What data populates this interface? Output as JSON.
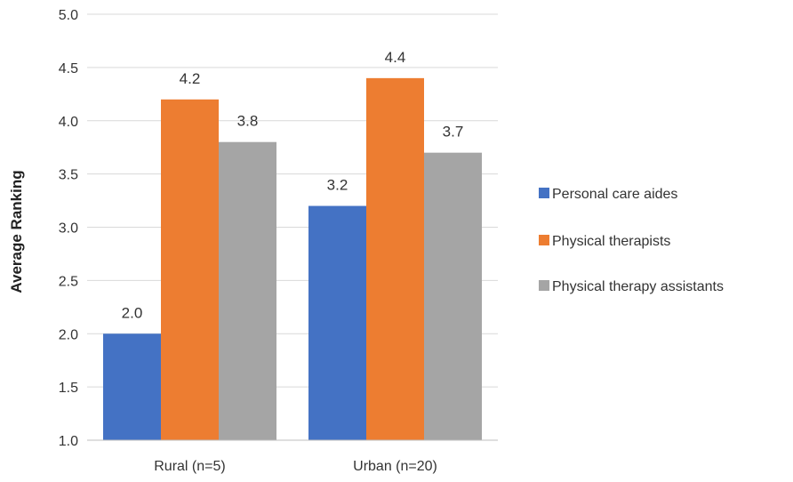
{
  "chart_data": {
    "type": "bar",
    "title": "",
    "xlabel": "",
    "ylabel": "Average Ranking",
    "categories": [
      "Rural (n=5)",
      "Urban (n=20)"
    ],
    "series": [
      {
        "name": "Personal care aides",
        "values": [
          2.0,
          3.2
        ],
        "color": "#4472C4"
      },
      {
        "name": "Physical therapists",
        "values": [
          4.2,
          4.4
        ],
        "color": "#ED7D31"
      },
      {
        "name": "Physical therapy assistants",
        "values": [
          3.8,
          3.7
        ],
        "color": "#A5A5A5"
      }
    ],
    "data_labels": [
      [
        "2.0",
        "3.2"
      ],
      [
        "4.2",
        "4.4"
      ],
      [
        "3.8",
        "3.7"
      ]
    ],
    "ylim": [
      1.0,
      5.0
    ],
    "yticks": [
      "1.0",
      "1.5",
      "2.0",
      "2.5",
      "3.0",
      "3.5",
      "4.0",
      "4.5",
      "5.0"
    ],
    "grid": true,
    "legend_position": "right"
  }
}
